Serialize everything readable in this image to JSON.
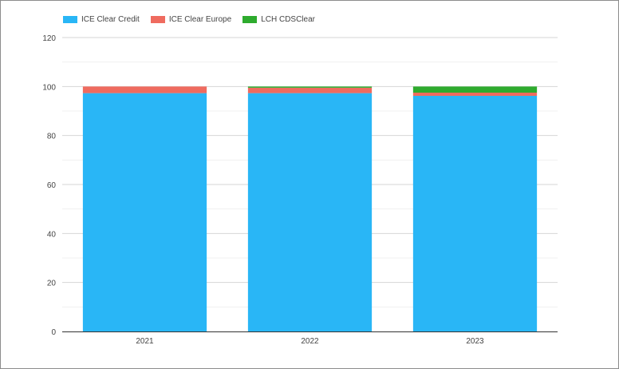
{
  "chart_data": {
    "type": "bar",
    "stacked": true,
    "categories": [
      "2021",
      "2022",
      "2023"
    ],
    "series": [
      {
        "name": "ICE Clear Credit",
        "color": "#29b6f6",
        "values": [
          97.3,
          97.3,
          96.2
        ]
      },
      {
        "name": "ICE Clear Europe",
        "color": "#ef6b5f",
        "values": [
          2.7,
          2.2,
          1.3
        ]
      },
      {
        "name": "LCH CDSClear",
        "color": "#2eab2e",
        "values": [
          0,
          0.5,
          2.5
        ]
      }
    ],
    "ylim": [
      0,
      120
    ],
    "yticks": [
      "0",
      "20",
      "40",
      "60",
      "80",
      "100",
      "120"
    ],
    "grid": true,
    "legend": "top-left"
  }
}
